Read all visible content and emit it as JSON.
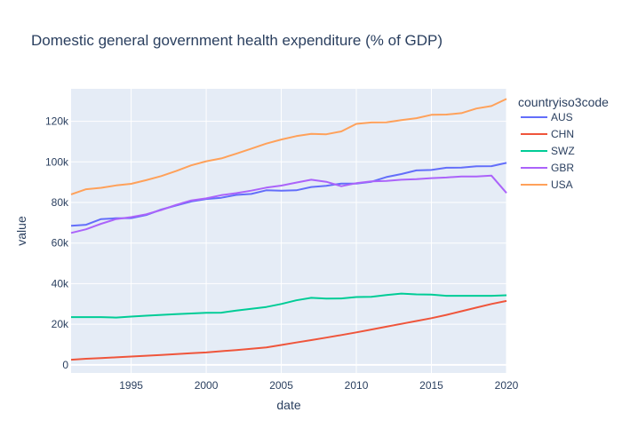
{
  "chart_data": {
    "type": "line",
    "title": "Domestic general government health expenditure (% of GDP)",
    "xlabel": "date",
    "ylabel": "value",
    "xlim": [
      1991,
      2020
    ],
    "ylim": [
      -4000,
      136000
    ],
    "x_ticks": [
      1995,
      2000,
      2005,
      2010,
      2015,
      2020
    ],
    "y_ticks": [
      {
        "value": 0,
        "label": "0"
      },
      {
        "value": 20000,
        "label": "20k"
      },
      {
        "value": 40000,
        "label": "40k"
      },
      {
        "value": 60000,
        "label": "60k"
      },
      {
        "value": 80000,
        "label": "80k"
      },
      {
        "value": 100000,
        "label": "100k"
      },
      {
        "value": 120000,
        "label": "120k"
      }
    ],
    "grid": true,
    "legend": {
      "title": "countryiso3code",
      "position": "top-right"
    },
    "x": [
      1991,
      1992,
      1993,
      1994,
      1995,
      1996,
      1997,
      1998,
      1999,
      2000,
      2001,
      2002,
      2003,
      2004,
      2005,
      2006,
      2007,
      2008,
      2009,
      2010,
      2011,
      2012,
      2013,
      2014,
      2015,
      2016,
      2017,
      2018,
      2019,
      2020
    ],
    "series": [
      {
        "name": "AUS",
        "color": "#636efa",
        "values": [
          68500,
          69000,
          71800,
          72200,
          72300,
          73800,
          76500,
          78500,
          80500,
          81700,
          82300,
          83700,
          84200,
          86000,
          85800,
          86000,
          87600,
          88200,
          89300,
          89300,
          90200,
          92500,
          94000,
          95800,
          96000,
          97100,
          97200,
          97800,
          97900,
          99500
        ]
      },
      {
        "name": "CHN",
        "color": "#ef553b",
        "values": [
          2500,
          3000,
          3300,
          3700,
          4100,
          4500,
          4900,
          5300,
          5700,
          6100,
          6700,
          7300,
          7900,
          8600,
          9800,
          11000,
          12200,
          13400,
          14700,
          16000,
          17400,
          18800,
          20200,
          21600,
          23000,
          24600,
          26400,
          28200,
          30000,
          31500
        ]
      },
      {
        "name": "SWZ",
        "color": "#00cc96",
        "values": [
          23500,
          23500,
          23500,
          23300,
          23800,
          24200,
          24600,
          25000,
          25300,
          25600,
          25700,
          26700,
          27600,
          28500,
          30000,
          31800,
          33000,
          32600,
          32700,
          33400,
          33500,
          34400,
          35100,
          34700,
          34600,
          34000,
          34000,
          34000,
          34000,
          34300
        ]
      },
      {
        "name": "GBR",
        "color": "#ab63fa",
        "values": [
          65000,
          66800,
          69500,
          71800,
          72800,
          74200,
          76300,
          78800,
          81000,
          82000,
          83600,
          84600,
          85800,
          87300,
          88300,
          89800,
          91200,
          90200,
          88000,
          89500,
          90400,
          90600,
          91200,
          91500,
          92000,
          92300,
          92800,
          92800,
          93200,
          84700
        ]
      },
      {
        "name": "USA",
        "color": "#ffa15a",
        "values": [
          84000,
          86500,
          87200,
          88400,
          89200,
          91000,
          93000,
          95500,
          98300,
          100300,
          101700,
          104000,
          106500,
          109000,
          111000,
          112700,
          113800,
          113600,
          115000,
          118700,
          119400,
          119500,
          120600,
          121500,
          123200,
          123300,
          124000,
          126300,
          127500,
          131000
        ]
      }
    ]
  }
}
